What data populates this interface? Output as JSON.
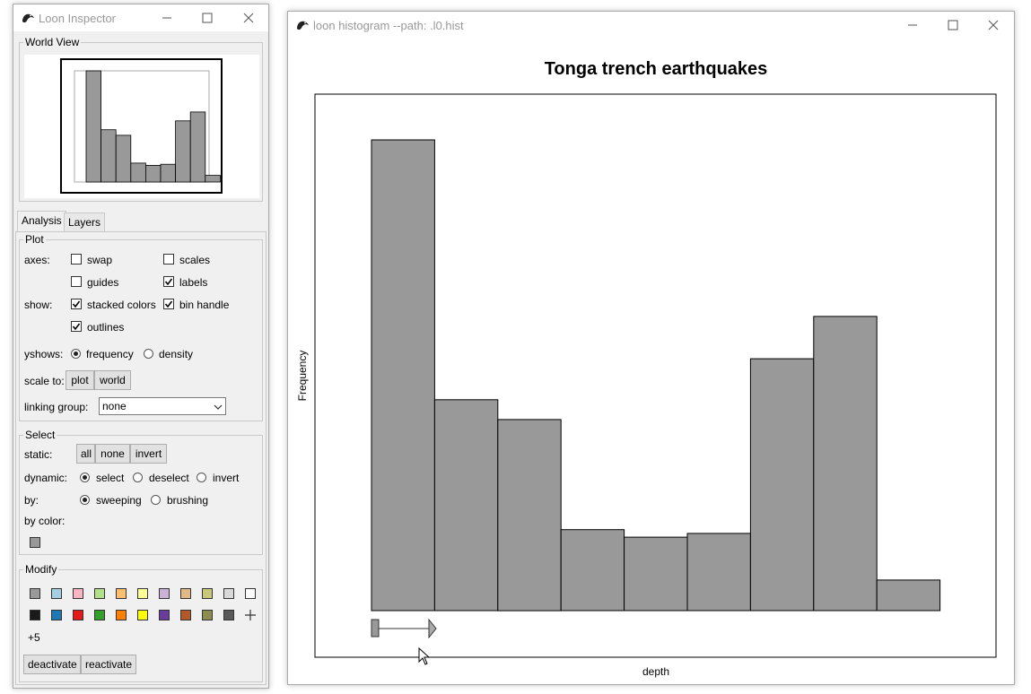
{
  "inspector": {
    "title": "Loon Inspector",
    "world_view_label": "World View",
    "world_bars": [
      100,
      47,
      42,
      17,
      15,
      16,
      55,
      63,
      6
    ],
    "tabs": [
      "Analysis",
      "Layers"
    ],
    "plot": {
      "legend": "Plot",
      "axes_label": "axes:",
      "swap": "swap",
      "scales": "scales",
      "guides": "guides",
      "labels": "labels",
      "show_label": "show:",
      "stacked_colors": "stacked colors",
      "bin_handle": "bin handle",
      "outlines": "outlines",
      "yshows_label": "yshows:",
      "frequency": "frequency",
      "density": "density",
      "scale_to_label": "scale to:",
      "scale_plot": "plot",
      "scale_world": "world",
      "linking_group_label": "linking group:",
      "linking_group_value": "none"
    },
    "select": {
      "legend": "Select",
      "static_label": "static:",
      "all": "all",
      "none": "none",
      "invert": "invert",
      "dynamic_label": "dynamic:",
      "select": "select",
      "deselect": "deselect",
      "dyn_invert": "invert",
      "by_label": "by:",
      "sweeping": "sweeping",
      "brushing": "brushing",
      "by_color_label": "by color:",
      "by_color_swatch": "#999999"
    },
    "modify": {
      "legend": "Modify",
      "colors_row1": [
        "#999999",
        "#a6cee3",
        "#fbb4c4",
        "#b2df8a",
        "#fdbf6f",
        "#ffff99",
        "#cab2d6",
        "#e0b987",
        "#c8c87a",
        "#d9d9d9",
        "#ffffff"
      ],
      "colors_row2": [
        "#1a1a1a",
        "#1f78b4",
        "#e31a1c",
        "#33a02c",
        "#ff7f00",
        "#ffff00",
        "#6a3d9a",
        "#b15928",
        "#8c8c50",
        "#595959"
      ],
      "more_label": "+5",
      "deactivate": "deactivate",
      "reactivate": "reactivate"
    }
  },
  "histogram_window": {
    "title": "loon histogram --path: .l0.hist"
  },
  "chart_data": {
    "type": "bar",
    "title": "Tonga trench earthquakes",
    "xlabel": "depth",
    "ylabel": "Frequency",
    "values": [
      100,
      44.8,
      40.6,
      17.2,
      15.6,
      16.4,
      53.5,
      62.5,
      6.5
    ],
    "ylim": [
      0,
      100
    ],
    "bar_color": "#999999",
    "grid": false
  }
}
